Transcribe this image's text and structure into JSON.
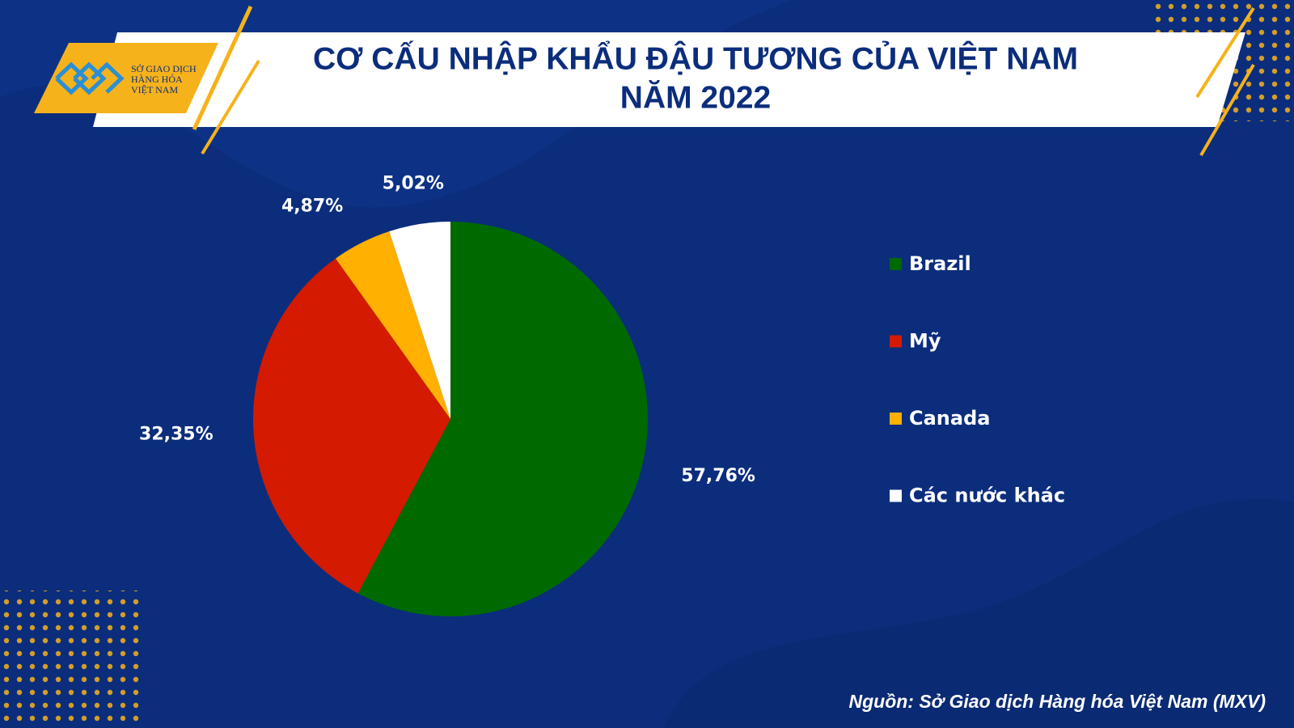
{
  "logo": {
    "lines": [
      "SỞ GIAO DỊCH",
      "HÀNG HÓA",
      "VIỆT NAM"
    ]
  },
  "chart_data": {
    "type": "pie",
    "title": [
      "CƠ CẤU NHẬP KHẨU ĐẬU TƯƠNG CỦA VIỆT NAM",
      "NĂM 2022"
    ],
    "categories": [
      "Brazil",
      "Mỹ",
      "Canada",
      "Các nước khác"
    ],
    "values": [
      57.76,
      32.35,
      4.87,
      5.02
    ],
    "value_labels": [
      "57,76%",
      "32,35%",
      "4,87%",
      "5,02%"
    ],
    "colors": [
      "#006a00",
      "#d41a00",
      "#ffb000",
      "#ffffff"
    ],
    "legend": "right"
  },
  "source": "Nguồn: Sở Giao dịch Hàng hóa Việt Nam (MXV)"
}
